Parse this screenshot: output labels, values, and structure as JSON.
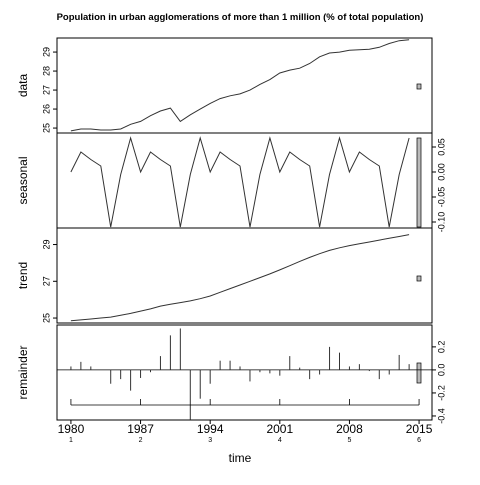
{
  "chart_data": {
    "type": "stl",
    "title": "Population in urban agglomerations of more than 1 million (% of total population)",
    "xlabel": "time",
    "x": [
      1980,
      1981,
      1982,
      1983,
      1984,
      1985,
      1986,
      1987,
      1988,
      1989,
      1990,
      1991,
      1992,
      1993,
      1994,
      1995,
      1996,
      1997,
      1998,
      1999,
      2000,
      2001,
      2002,
      2003,
      2004,
      2005,
      2006,
      2007,
      2008,
      2009,
      2010,
      2011,
      2012,
      2013,
      2014
    ],
    "xlim": [
      1978.6,
      2016.3
    ],
    "xticks": [
      1980,
      1987,
      1994,
      2001,
      2008,
      2015
    ],
    "cycle_labels": [
      1,
      2,
      3,
      4,
      5,
      6
    ],
    "color": "#333333",
    "panels": [
      {
        "ylabel": "data",
        "mode": "line",
        "axis_side": "left",
        "ylim": [
          24.74,
          29.74
        ],
        "yticks": [
          25,
          26,
          27,
          28,
          29
        ],
        "values": [
          24.85,
          24.95,
          24.95,
          24.9,
          24.9,
          24.95,
          25.2,
          25.35,
          25.65,
          25.9,
          26.05,
          25.35,
          25.7,
          26.0,
          26.3,
          26.55,
          26.7,
          26.8,
          27.0,
          27.3,
          27.55,
          27.9,
          28.05,
          28.15,
          28.4,
          28.75,
          28.95,
          29.0,
          29.1,
          29.12,
          29.15,
          29.25,
          29.45,
          29.6,
          29.65
        ]
      },
      {
        "ylabel": "seasonal",
        "mode": "line",
        "axis_side": "right",
        "ylim": [
          -0.112,
          0.078
        ],
        "yticks": [
          {
            "value": -0.1,
            "label": "-0.10"
          },
          {
            "value": -0.05,
            "label": "-0.05"
          },
          {
            "value": 0,
            "label": "0.00"
          },
          {
            "value": 0.05,
            "label": "0.05"
          }
        ],
        "values": [
          0.0,
          0.04,
          0.025,
          0.012,
          -0.11,
          -0.005,
          0.068,
          0.0,
          0.04,
          0.025,
          0.012,
          -0.11,
          -0.005,
          0.068,
          0.0,
          0.04,
          0.025,
          0.012,
          -0.11,
          -0.005,
          0.068,
          0.0,
          0.04,
          0.025,
          0.012,
          -0.11,
          -0.005,
          0.068,
          0.0,
          0.04,
          0.025,
          0.012,
          -0.11,
          -0.005,
          0.068
        ]
      },
      {
        "ylabel": "trend",
        "mode": "line",
        "axis_side": "left",
        "ylim": [
          24.73,
          29.9
        ],
        "yticks": [
          25,
          27,
          29
        ],
        "values": [
          24.85,
          24.9,
          24.95,
          25.0,
          25.05,
          25.15,
          25.25,
          25.38,
          25.5,
          25.65,
          25.75,
          25.84,
          25.93,
          26.05,
          26.2,
          26.4,
          26.6,
          26.8,
          27.0,
          27.2,
          27.4,
          27.62,
          27.85,
          28.08,
          28.3,
          28.5,
          28.68,
          28.82,
          28.94,
          29.04,
          29.14,
          29.24,
          29.34,
          29.44,
          29.54
        ]
      },
      {
        "ylabel": "remainder",
        "mode": "hist",
        "axis_side": "right",
        "ylim": [
          -0.435,
          0.39
        ],
        "yticks": [
          -0.4,
          -0.2,
          {
            "value": 0,
            "label": "0.0"
          },
          0.2
        ],
        "values": [
          0.03,
          0.07,
          0.03,
          0.0,
          -0.12,
          -0.08,
          -0.18,
          -0.07,
          -0.02,
          0.12,
          0.3,
          0.36,
          -0.43,
          -0.25,
          -0.12,
          0.08,
          0.08,
          0.03,
          -0.1,
          -0.02,
          -0.03,
          -0.05,
          0.12,
          0.02,
          -0.08,
          -0.04,
          0.2,
          0.15,
          0.03,
          0.05,
          -0.01,
          -0.08,
          -0.04,
          0.13,
          0.05
        ]
      }
    ]
  }
}
